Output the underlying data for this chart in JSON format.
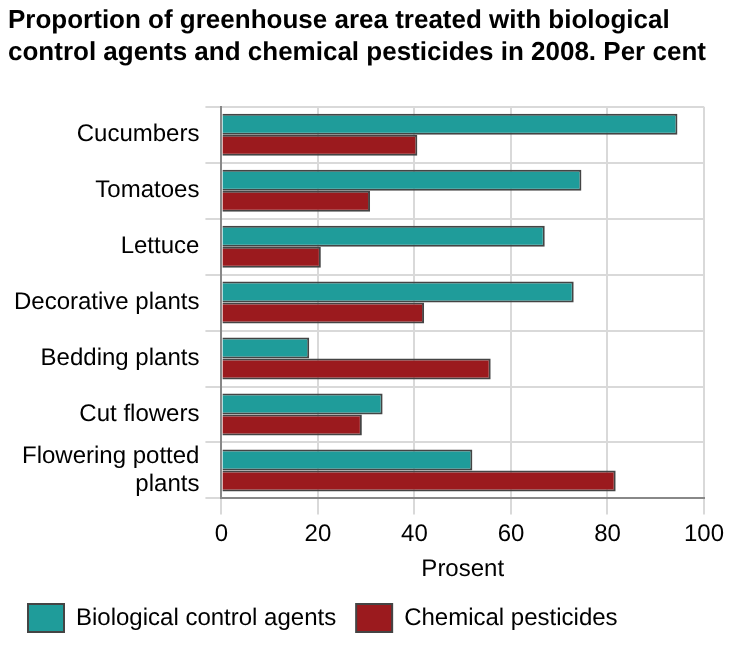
{
  "chart_data": {
    "type": "bar",
    "orientation": "horizontal",
    "title": "Proportion of greenhouse area treated with biological control agents and chemical pesticides in 2008. Per cent",
    "xlabel": "Prosent",
    "categories": [
      "Cucumbers",
      "Tomatoes",
      "Lettuce",
      "Decorative plants",
      "Bedding plants",
      "Cut flowers",
      "Flowering potted plants"
    ],
    "series": [
      {
        "name": "Biological control agents",
        "color": "#1f9c9a",
        "values": [
          94.5,
          74.6,
          67,
          73,
          18.2,
          33.4,
          52
        ]
      },
      {
        "name": "Chemical pesticides",
        "color": "#9b1a1e",
        "values": [
          40.6,
          30.8,
          20.6,
          42,
          55.8,
          29.1,
          81.7
        ]
      }
    ],
    "xlim": [
      0,
      100
    ],
    "xticks": [
      0,
      20,
      40,
      60,
      80,
      100
    ],
    "grid": true,
    "legend": "bottom"
  }
}
